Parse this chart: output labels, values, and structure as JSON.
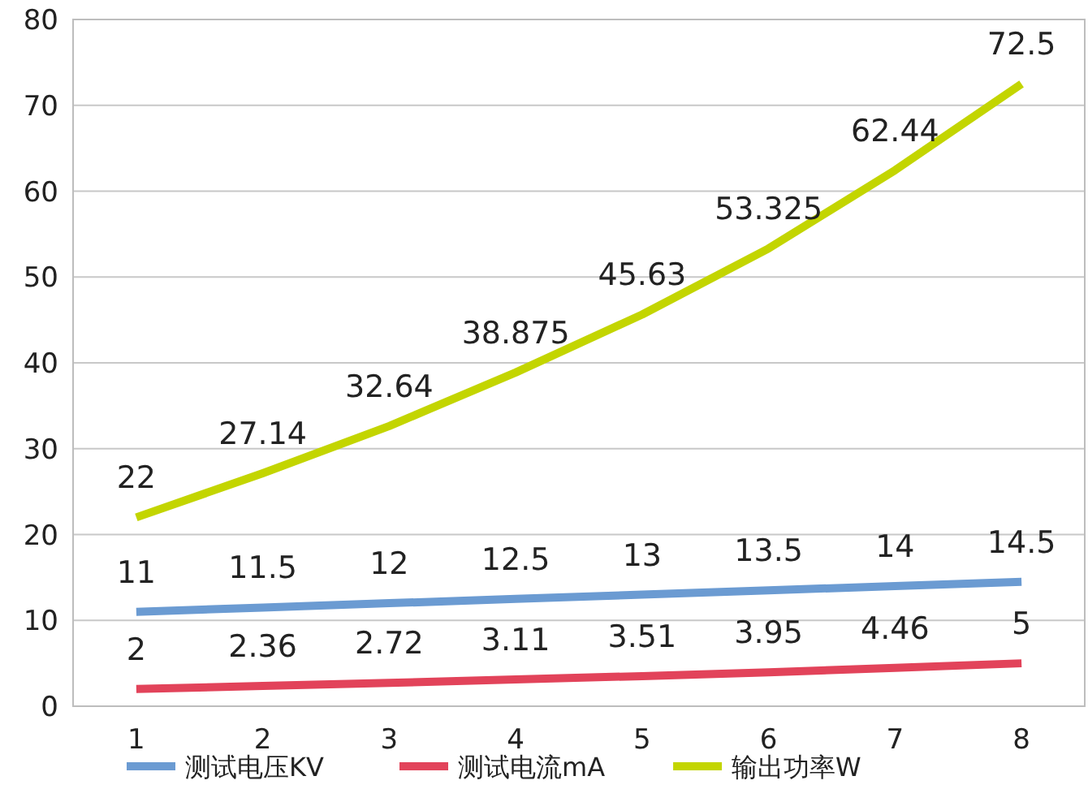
{
  "chart_data": {
    "type": "line",
    "categories": [
      "1",
      "2",
      "3",
      "4",
      "5",
      "6",
      "7",
      "8"
    ],
    "series": [
      {
        "name": "测试电压KV",
        "color": "#6b9bd2",
        "values": [
          11,
          11.5,
          12,
          12.5,
          13,
          13.5,
          14,
          14.5
        ]
      },
      {
        "name": "测试电流mA",
        "color": "#e2435a",
        "values": [
          2,
          2.36,
          2.72,
          3.11,
          3.51,
          3.95,
          4.46,
          5
        ]
      },
      {
        "name": "输出功率W",
        "color": "#c3d500",
        "values": [
          22,
          27.14,
          32.64,
          38.875,
          45.63,
          53.325,
          62.44,
          72.5
        ]
      }
    ],
    "ylim": [
      0,
      80
    ],
    "yticks": [
      0,
      10,
      20,
      30,
      40,
      50,
      60,
      70,
      80
    ],
    "grid": "y",
    "legend": "bottom",
    "data_labels": true
  }
}
